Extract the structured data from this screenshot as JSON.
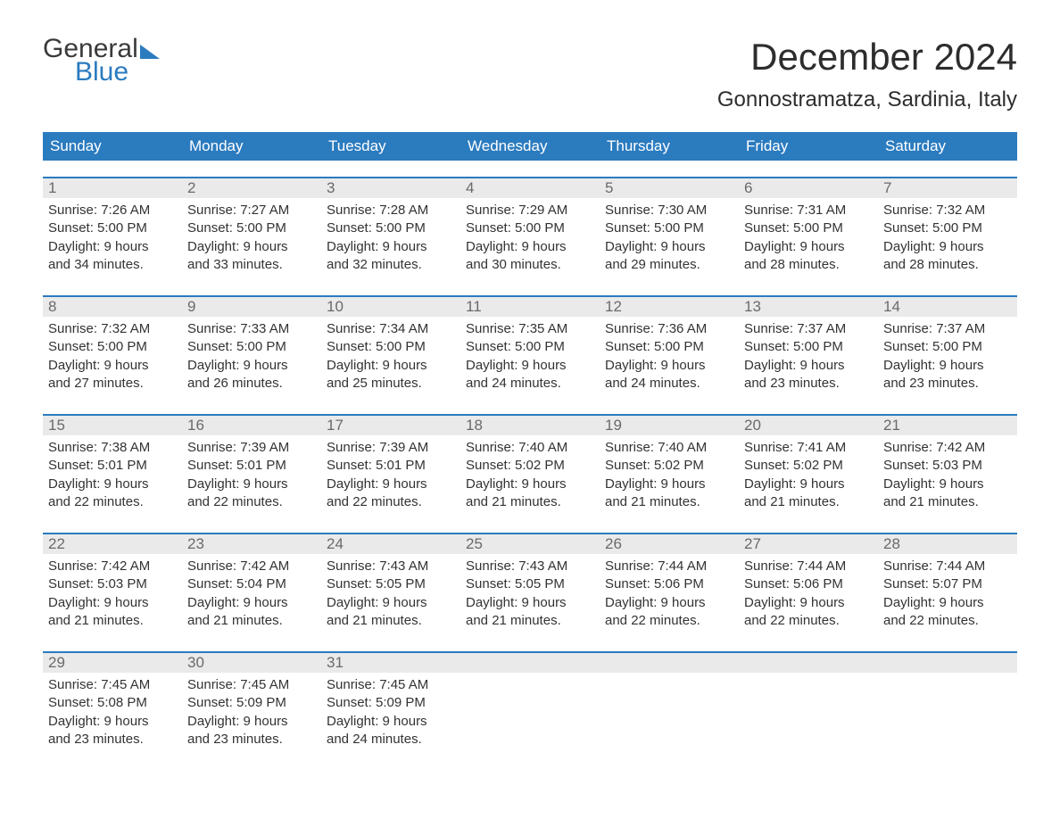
{
  "brand": {
    "word1": "General",
    "word2": "Blue"
  },
  "title": "December 2024",
  "location": "Gonnostramatza, Sardinia, Italy",
  "colors": {
    "accent": "#2b7bbf",
    "header_text": "#ffffff",
    "daynum_bg": "#eaeaea",
    "daynum_text": "#6a6a6a",
    "body_text": "#333333",
    "background": "#ffffff"
  },
  "calendar": {
    "type": "calendar-grid",
    "columns": [
      "Sunday",
      "Monday",
      "Tuesday",
      "Wednesday",
      "Thursday",
      "Friday",
      "Saturday"
    ],
    "label_fontsize": 17,
    "content_fontsize": 15,
    "weeks": [
      [
        {
          "n": "1",
          "sr": "Sunrise: 7:26 AM",
          "ss": "Sunset: 5:00 PM",
          "d1": "Daylight: 9 hours",
          "d2": "and 34 minutes."
        },
        {
          "n": "2",
          "sr": "Sunrise: 7:27 AM",
          "ss": "Sunset: 5:00 PM",
          "d1": "Daylight: 9 hours",
          "d2": "and 33 minutes."
        },
        {
          "n": "3",
          "sr": "Sunrise: 7:28 AM",
          "ss": "Sunset: 5:00 PM",
          "d1": "Daylight: 9 hours",
          "d2": "and 32 minutes."
        },
        {
          "n": "4",
          "sr": "Sunrise: 7:29 AM",
          "ss": "Sunset: 5:00 PM",
          "d1": "Daylight: 9 hours",
          "d2": "and 30 minutes."
        },
        {
          "n": "5",
          "sr": "Sunrise: 7:30 AM",
          "ss": "Sunset: 5:00 PM",
          "d1": "Daylight: 9 hours",
          "d2": "and 29 minutes."
        },
        {
          "n": "6",
          "sr": "Sunrise: 7:31 AM",
          "ss": "Sunset: 5:00 PM",
          "d1": "Daylight: 9 hours",
          "d2": "and 28 minutes."
        },
        {
          "n": "7",
          "sr": "Sunrise: 7:32 AM",
          "ss": "Sunset: 5:00 PM",
          "d1": "Daylight: 9 hours",
          "d2": "and 28 minutes."
        }
      ],
      [
        {
          "n": "8",
          "sr": "Sunrise: 7:32 AM",
          "ss": "Sunset: 5:00 PM",
          "d1": "Daylight: 9 hours",
          "d2": "and 27 minutes."
        },
        {
          "n": "9",
          "sr": "Sunrise: 7:33 AM",
          "ss": "Sunset: 5:00 PM",
          "d1": "Daylight: 9 hours",
          "d2": "and 26 minutes."
        },
        {
          "n": "10",
          "sr": "Sunrise: 7:34 AM",
          "ss": "Sunset: 5:00 PM",
          "d1": "Daylight: 9 hours",
          "d2": "and 25 minutes."
        },
        {
          "n": "11",
          "sr": "Sunrise: 7:35 AM",
          "ss": "Sunset: 5:00 PM",
          "d1": "Daylight: 9 hours",
          "d2": "and 24 minutes."
        },
        {
          "n": "12",
          "sr": "Sunrise: 7:36 AM",
          "ss": "Sunset: 5:00 PM",
          "d1": "Daylight: 9 hours",
          "d2": "and 24 minutes."
        },
        {
          "n": "13",
          "sr": "Sunrise: 7:37 AM",
          "ss": "Sunset: 5:00 PM",
          "d1": "Daylight: 9 hours",
          "d2": "and 23 minutes."
        },
        {
          "n": "14",
          "sr": "Sunrise: 7:37 AM",
          "ss": "Sunset: 5:00 PM",
          "d1": "Daylight: 9 hours",
          "d2": "and 23 minutes."
        }
      ],
      [
        {
          "n": "15",
          "sr": "Sunrise: 7:38 AM",
          "ss": "Sunset: 5:01 PM",
          "d1": "Daylight: 9 hours",
          "d2": "and 22 minutes."
        },
        {
          "n": "16",
          "sr": "Sunrise: 7:39 AM",
          "ss": "Sunset: 5:01 PM",
          "d1": "Daylight: 9 hours",
          "d2": "and 22 minutes."
        },
        {
          "n": "17",
          "sr": "Sunrise: 7:39 AM",
          "ss": "Sunset: 5:01 PM",
          "d1": "Daylight: 9 hours",
          "d2": "and 22 minutes."
        },
        {
          "n": "18",
          "sr": "Sunrise: 7:40 AM",
          "ss": "Sunset: 5:02 PM",
          "d1": "Daylight: 9 hours",
          "d2": "and 21 minutes."
        },
        {
          "n": "19",
          "sr": "Sunrise: 7:40 AM",
          "ss": "Sunset: 5:02 PM",
          "d1": "Daylight: 9 hours",
          "d2": "and 21 minutes."
        },
        {
          "n": "20",
          "sr": "Sunrise: 7:41 AM",
          "ss": "Sunset: 5:02 PM",
          "d1": "Daylight: 9 hours",
          "d2": "and 21 minutes."
        },
        {
          "n": "21",
          "sr": "Sunrise: 7:42 AM",
          "ss": "Sunset: 5:03 PM",
          "d1": "Daylight: 9 hours",
          "d2": "and 21 minutes."
        }
      ],
      [
        {
          "n": "22",
          "sr": "Sunrise: 7:42 AM",
          "ss": "Sunset: 5:03 PM",
          "d1": "Daylight: 9 hours",
          "d2": "and 21 minutes."
        },
        {
          "n": "23",
          "sr": "Sunrise: 7:42 AM",
          "ss": "Sunset: 5:04 PM",
          "d1": "Daylight: 9 hours",
          "d2": "and 21 minutes."
        },
        {
          "n": "24",
          "sr": "Sunrise: 7:43 AM",
          "ss": "Sunset: 5:05 PM",
          "d1": "Daylight: 9 hours",
          "d2": "and 21 minutes."
        },
        {
          "n": "25",
          "sr": "Sunrise: 7:43 AM",
          "ss": "Sunset: 5:05 PM",
          "d1": "Daylight: 9 hours",
          "d2": "and 21 minutes."
        },
        {
          "n": "26",
          "sr": "Sunrise: 7:44 AM",
          "ss": "Sunset: 5:06 PM",
          "d1": "Daylight: 9 hours",
          "d2": "and 22 minutes."
        },
        {
          "n": "27",
          "sr": "Sunrise: 7:44 AM",
          "ss": "Sunset: 5:06 PM",
          "d1": "Daylight: 9 hours",
          "d2": "and 22 minutes."
        },
        {
          "n": "28",
          "sr": "Sunrise: 7:44 AM",
          "ss": "Sunset: 5:07 PM",
          "d1": "Daylight: 9 hours",
          "d2": "and 22 minutes."
        }
      ],
      [
        {
          "n": "29",
          "sr": "Sunrise: 7:45 AM",
          "ss": "Sunset: 5:08 PM",
          "d1": "Daylight: 9 hours",
          "d2": "and 23 minutes."
        },
        {
          "n": "30",
          "sr": "Sunrise: 7:45 AM",
          "ss": "Sunset: 5:09 PM",
          "d1": "Daylight: 9 hours",
          "d2": "and 23 minutes."
        },
        {
          "n": "31",
          "sr": "Sunrise: 7:45 AM",
          "ss": "Sunset: 5:09 PM",
          "d1": "Daylight: 9 hours",
          "d2": "and 24 minutes."
        },
        null,
        null,
        null,
        null
      ]
    ]
  }
}
